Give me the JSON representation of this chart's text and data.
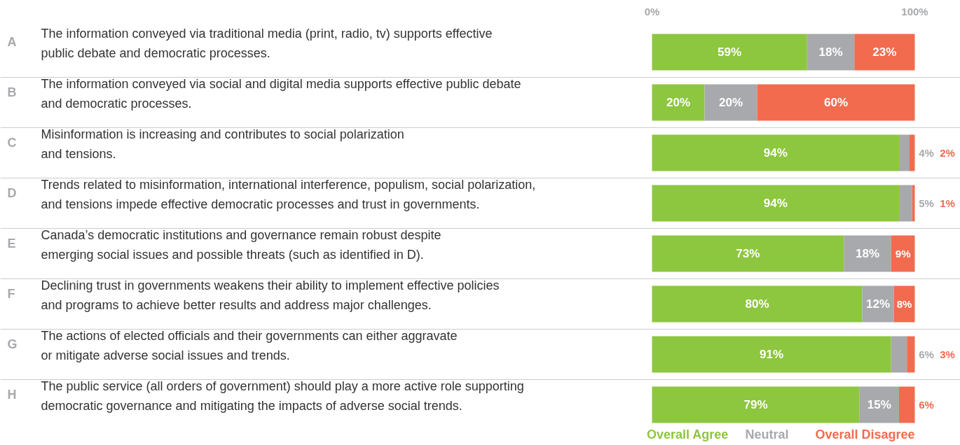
{
  "chart_data": {
    "type": "bar",
    "orientation": "horizontal",
    "stacked": true,
    "categories": [
      "A The information conveyed via traditional media (print, radio, tv) supports effective\npublic debate and democratic processes.",
      "B The information conveyed via social and digital media supports effective public debate\nand democratic processes.",
      "C Misinformation is increasing and contributes to social polarization\nand tensions.",
      "D Trends related to misinformation, international interference, populism, social polarization,\nand tensions impede effective democratic processes and trust in governments.",
      "E Canada’s democratic institutions and governance remain robust despite\nemerging social issues and possible threats (such as identified in D).",
      "F Declining trust in governments weakens their ability to implement effective policies\nand programs to achieve better results and address major challenges.",
      "G The actions of elected officials and their governments can either aggravate\nor mitigate adverse social issues and trends.",
      "H The public service (all orders of government) should play a more active role supporting\ndemocratic governance and mitigating the impacts of adverse social trends."
    ],
    "series": [
      {
        "name": "Overall Agree",
        "color": "#8dc63f",
        "values": [
          59,
          20,
          94,
          94,
          73,
          80,
          91,
          79
        ],
        "value_labels": [
          "59%",
          "20%",
          "94%",
          "94%",
          "73%",
          "80%",
          "91%",
          "79%"
        ]
      },
      {
        "name": "Neutral",
        "color": "#a7a9ac",
        "values": [
          18,
          20,
          4,
          5,
          18,
          12,
          6,
          15
        ],
        "value_labels": [
          "18%",
          "20%",
          "4%",
          "5%",
          "18%",
          "12%",
          "6%",
          "15%"
        ]
      },
      {
        "name": "Overall Disagree",
        "color": "#f26b4f",
        "values": [
          23,
          60,
          2,
          1,
          9,
          8,
          3,
          6
        ],
        "value_labels": [
          "23%",
          "60%",
          "2%",
          "1%",
          "9%",
          "8%",
          "3%",
          "6%"
        ]
      }
    ],
    "xlim": [
      0,
      100
    ],
    "xticks": [
      {
        "value": 0,
        "label": "0%"
      },
      {
        "value": 100,
        "label": "100%"
      }
    ],
    "grid": "y",
    "legend": "bottom right"
  }
}
